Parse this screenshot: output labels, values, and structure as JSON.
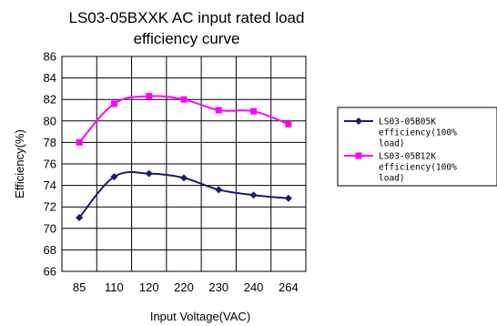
{
  "chart_data": {
    "type": "line",
    "title_lines": [
      "LS03-05BXXK AC input rated load",
      "efficiency curve"
    ],
    "xlabel": "Input Voltage(VAC)",
    "ylabel": "Efficiency(%)",
    "categories": [
      "85",
      "110",
      "120",
      "220",
      "230",
      "240",
      "264"
    ],
    "x_ticks": [
      "85",
      "110",
      "120",
      "220",
      "230",
      "240",
      "264"
    ],
    "y_ticks": [
      "86",
      "84",
      "82",
      "80",
      "78",
      "76",
      "74",
      "72",
      "70",
      "68",
      "66"
    ],
    "ylim": [
      66,
      86
    ],
    "y_major": 2,
    "grid": true,
    "legend_position": "right",
    "series": [
      {
        "name": "LS03-05B05K efficiency(100% load)",
        "legend_lines": [
          "LS03-05B05K",
          "efficiency(100%",
          "load)"
        ],
        "color": "#1a1a6e",
        "marker": "diamond",
        "points": [
          {
            "x": "85",
            "y": 71.0
          },
          {
            "x": "110",
            "y": 74.8
          },
          {
            "x": "120",
            "y": 75.1
          },
          {
            "x": "220",
            "y": 74.7
          },
          {
            "x": "230",
            "y": 73.6
          },
          {
            "x": "240",
            "y": 73.1
          },
          {
            "x": "264",
            "y": 72.8
          }
        ]
      },
      {
        "name": "LS03-05B12K efficiency(100% load)",
        "legend_lines": [
          "LS03-05B12K",
          "efficiency(100%",
          "load)"
        ],
        "color": "#ff00ff",
        "marker": "square",
        "points": [
          {
            "x": "85",
            "y": 78.0
          },
          {
            "x": "110",
            "y": 81.6
          },
          {
            "x": "120",
            "y": 82.3
          },
          {
            "x": "220",
            "y": 82.0
          },
          {
            "x": "230",
            "y": 81.0
          },
          {
            "x": "240",
            "y": 80.9
          },
          {
            "x": "264",
            "y": 79.7
          }
        ]
      }
    ]
  }
}
